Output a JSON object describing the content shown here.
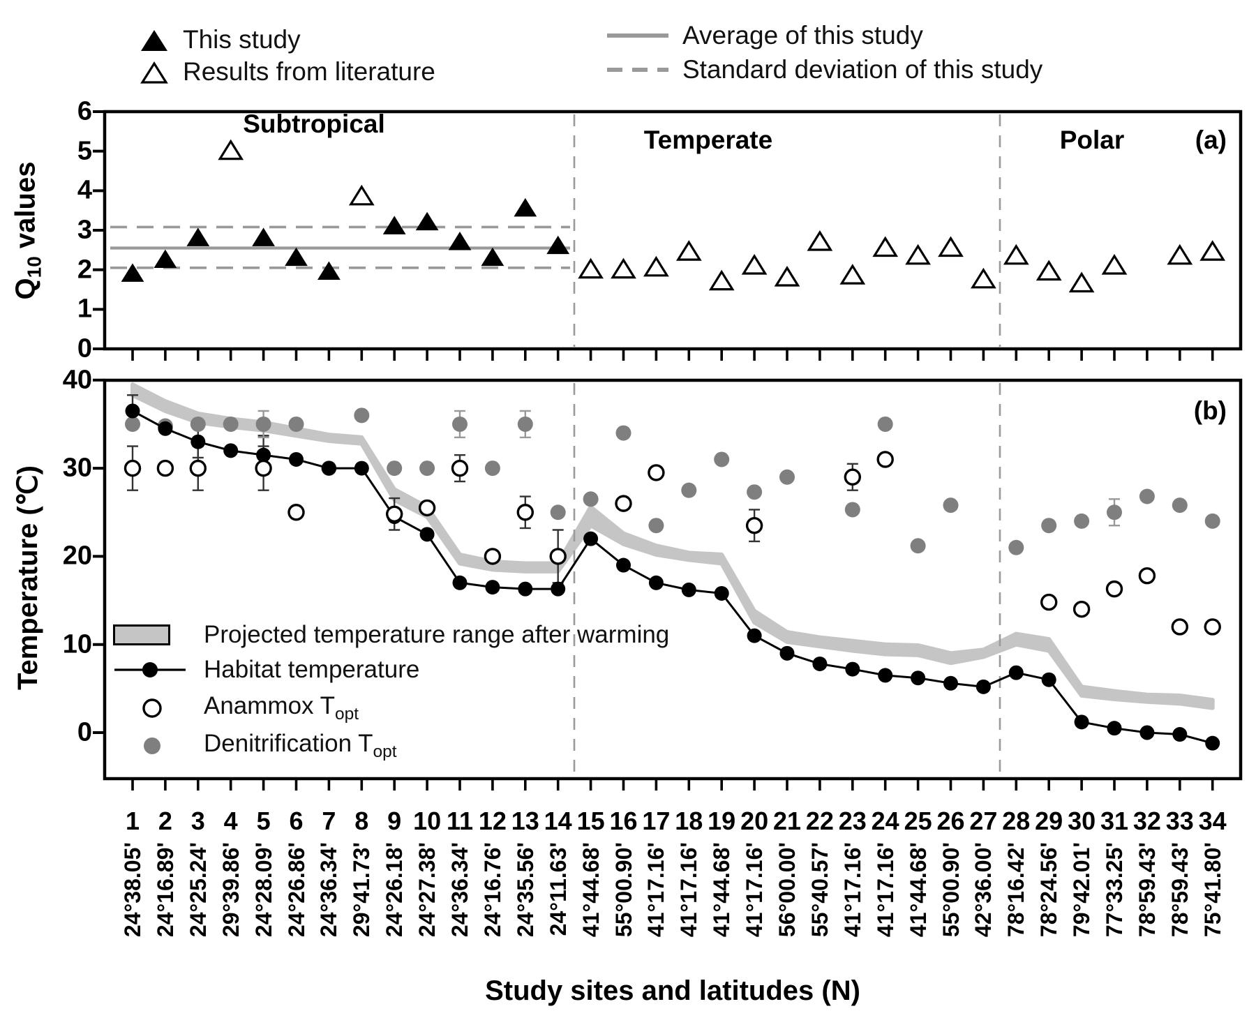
{
  "colors": {
    "black": "#000000",
    "gray_marker": "#7f7f7f",
    "band_gray": "#c5c5c5",
    "stat_line_gray": "#999999",
    "divider_gray": "#9a9a9a"
  },
  "legend_top": {
    "this_study": "This study",
    "literature": "Results from literature",
    "average": "Average of this study",
    "stdev": "Standard deviation of this study"
  },
  "legend_panel_b": {
    "band": "Projected temperature range after warming",
    "habitat": "Habitat temperature",
    "anammox_pre": "Anammox T",
    "anammox_sub": "opt",
    "denitrification_pre": "Denitrification T",
    "denitrification_sub": "opt"
  },
  "axis": {
    "q10_label_pre": "Q",
    "q10_label_sub": "10",
    "q10_label_post": " values",
    "temperature_label": "Temperature (℃)",
    "x_title": "Study sites and latitudes (N)",
    "panel_a_letter": "(a)",
    "panel_b_letter": "(b)"
  },
  "chart_data": {
    "type": "scatter",
    "x_title": "Study sites and latitudes (N)",
    "sites": [
      1,
      2,
      3,
      4,
      5,
      6,
      7,
      8,
      9,
      10,
      11,
      12,
      13,
      14,
      15,
      16,
      17,
      18,
      19,
      20,
      21,
      22,
      23,
      24,
      25,
      26,
      27,
      28,
      29,
      30,
      31,
      32,
      33,
      34
    ],
    "latitudes": [
      "24°38.05'",
      "24°16.89'",
      "24°25.24'",
      "29°39.86'",
      "24°28.09'",
      "24°26.86'",
      "24°36.34'",
      "29°41.73'",
      "24°26.18'",
      "24°27.38'",
      "24°36.34'",
      "24°16.76'",
      "24°35.56'",
      "24°11.63'",
      "41°44.68'",
      "55°00.90'",
      "41°17.16'",
      "41°17.16'",
      "41°44.68'",
      "41°17.16'",
      "56°00.00'",
      "55°40.57'",
      "41°17.16'",
      "41°17.16'",
      "41°44.68'",
      "55°00.90'",
      "42°36.00'",
      "78°16.42'",
      "78°24.56'",
      "79°42.01'",
      "77°33.25'",
      "78°59.43'",
      "78°59.43'",
      "75°41.80'"
    ],
    "regions": [
      {
        "label": "Subtropical",
        "sites": "1-14"
      },
      {
        "label": "Temperate",
        "sites": "15-27"
      },
      {
        "label": "Polar",
        "sites": "28-34"
      }
    ],
    "panel_a": {
      "ylabel": "Q10 values",
      "ylim": [
        0,
        6
      ],
      "yticks": [
        0,
        1,
        2,
        3,
        4,
        5,
        6
      ],
      "average": 2.55,
      "sd_upper": 3.08,
      "sd_lower": 2.05,
      "series": [
        {
          "name": "This study",
          "marker": "filled-triangle",
          "values": [
            1.9,
            2.25,
            2.8,
            null,
            2.8,
            2.3,
            1.95,
            null,
            3.1,
            3.2,
            2.7,
            2.3,
            3.55,
            2.6,
            null,
            null,
            null,
            null,
            null,
            null,
            null,
            null,
            null,
            null,
            null,
            null,
            null,
            null,
            null,
            null,
            null,
            null,
            null,
            null
          ]
        },
        {
          "name": "Results from literature",
          "marker": "open-triangle",
          "values": [
            null,
            null,
            null,
            5.0,
            null,
            null,
            null,
            3.85,
            null,
            null,
            null,
            null,
            null,
            null,
            2.0,
            2.0,
            2.05,
            2.45,
            1.7,
            2.1,
            1.8,
            2.7,
            1.85,
            2.55,
            2.35,
            2.55,
            1.75,
            2.35,
            1.95,
            1.65,
            2.1,
            null,
            2.35,
            2.45
          ]
        }
      ]
    },
    "panel_b": {
      "ylabel": "Temperature (°C)",
      "ylim": [
        -5.5,
        40
      ],
      "yticks": [
        0,
        10,
        20,
        30,
        40
      ],
      "habitat_temperature": [
        36.5,
        34.5,
        33,
        32,
        31.5,
        31,
        30,
        30,
        24.5,
        22.5,
        17,
        16.5,
        16.3,
        16.3,
        22,
        19,
        17,
        16.2,
        15.8,
        11,
        9,
        7.8,
        7.2,
        6.5,
        6.2,
        5.6,
        5.2,
        6.8,
        6,
        1.2,
        0.5,
        0,
        -0.2,
        -1.2
      ],
      "anammox_topt": [
        30,
        30,
        30,
        null,
        30,
        25,
        null,
        null,
        24.8,
        25.5,
        30,
        20,
        25,
        20,
        null,
        26,
        29.5,
        null,
        null,
        23.5,
        null,
        null,
        29,
        31,
        null,
        null,
        null,
        null,
        14.8,
        14,
        16.3,
        17.8,
        12,
        12
      ],
      "denitrification_topt": [
        35,
        34.8,
        35,
        35,
        35,
        35,
        30,
        36,
        30,
        30,
        35,
        30,
        35,
        25,
        26.5,
        34,
        23.5,
        27.5,
        31,
        27.3,
        29,
        null,
        25.3,
        35,
        21.2,
        25.8,
        null,
        21,
        23.5,
        24,
        25,
        26.8,
        25.8,
        24
      ],
      "projected_range_upper": [
        39.5,
        37.6,
        36.2,
        35.6,
        35.2,
        34.5,
        33.8,
        33.5,
        27.6,
        25.6,
        20.2,
        19.4,
        19.2,
        19.2,
        25.6,
        22.6,
        21.2,
        20.4,
        20.2,
        13.8,
        11.4,
        10.8,
        10.4,
        10.0,
        9.9,
        9.0,
        9.4,
        11.2,
        10.6,
        5.2,
        4.7,
        4.3,
        4.2,
        3.7
      ],
      "projected_range_lower": [
        38.3,
        36.5,
        35.2,
        34.7,
        34.3,
        33.7,
        33.1,
        32.8,
        26.4,
        24.5,
        19.2,
        18.5,
        18.3,
        18.3,
        23.5,
        21.4,
        20.2,
        19.6,
        19.2,
        12.5,
        10.3,
        9.8,
        9.3,
        8.9,
        8.8,
        7.9,
        8.6,
        10.0,
        9.3,
        4.2,
        3.8,
        3.5,
        3.3,
        2.8
      ],
      "error_bars": {
        "habitat": {
          "1": 1.8,
          "3": 1.8,
          "5": 2.2
        },
        "anammox": {
          "1": 2.5,
          "3": 2.5,
          "5": 2.5,
          "9": 1.8,
          "11": 1.5,
          "13": 1.8,
          "14": 3,
          "20": 1.8,
          "23": 1.5
        },
        "denitrification": {
          "5": 1.5,
          "11": 1.5,
          "13": 1.5,
          "31": 1.5
        }
      }
    }
  }
}
